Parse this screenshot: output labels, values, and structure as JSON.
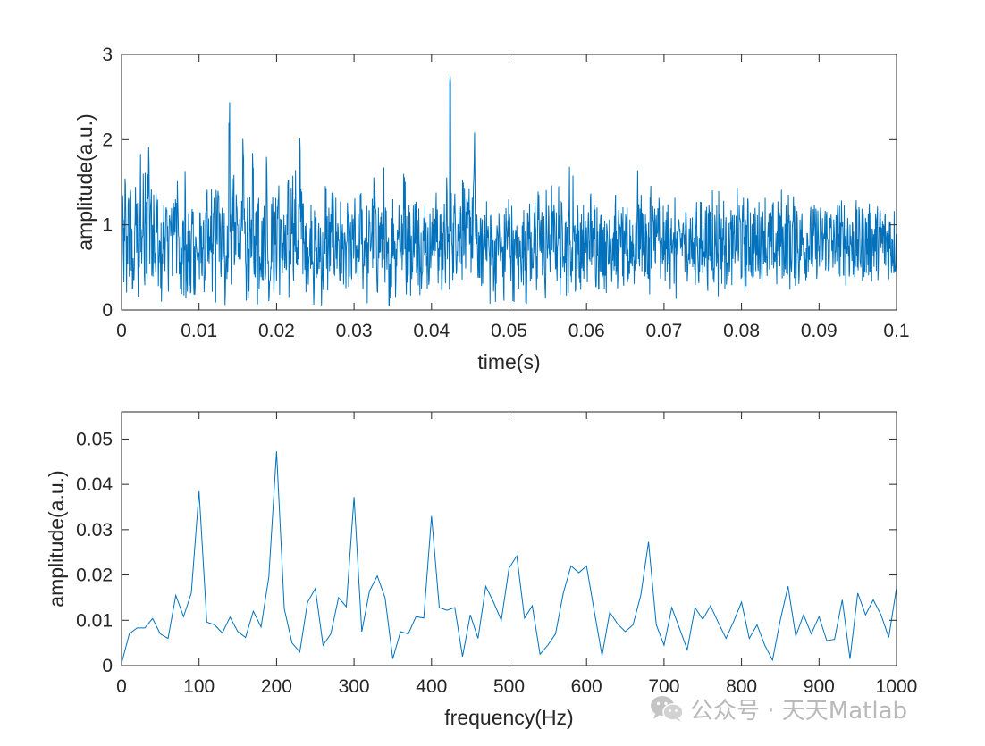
{
  "chart_data": [
    {
      "type": "line",
      "title": "",
      "xlabel": "time(s)",
      "ylabel": "amplitude(a.u.)",
      "xlim": [
        0,
        0.1
      ],
      "ylim": [
        0,
        3
      ],
      "xticks": [
        0,
        0.01,
        0.02,
        0.03,
        0.04,
        0.05,
        0.06,
        0.07,
        0.08,
        0.09,
        0.1
      ],
      "xtick_labels": [
        "0",
        "0.01",
        "0.02",
        "0.03",
        "0.04",
        "0.05",
        "0.06",
        "0.07",
        "0.08",
        "0.09",
        "0.1"
      ],
      "yticks": [
        0,
        1,
        2,
        3
      ],
      "ytick_labels": [
        "0",
        "1",
        "2",
        "3"
      ],
      "grid": false,
      "color": "#0072BD",
      "note": "dense noisy signal sampled at 20 kHz; values approximated",
      "sample_rate": 20000,
      "values": [
        0.55,
        0.9,
        0.62,
        1.25,
        0.48,
        0.8,
        0.98,
        0.74,
        1.53,
        0.58,
        0.32,
        0.66,
        1.05,
        1.02,
        0.92,
        0.22,
        0.85,
        1.66,
        0.77,
        0.95,
        1.2,
        0.62,
        1.46,
        0.62,
        1.32,
        1.6,
        0.97,
        1.27,
        0.59,
        0.66,
        0.99,
        0.53,
        1.1,
        0.85,
        0.56,
        0.49,
        0.63,
        0.39,
        0.71,
        0.95,
        0.9,
        0.91,
        0.72,
        0.66,
        0.98,
        0.88,
        0.82,
        0.73,
        1.1,
        1.04,
        1.41,
        0.77,
        1.09,
        0.58,
        0.58,
        0.52,
        0.63,
        1.38,
        0.51,
        1.45,
        0.39,
        0.58,
        0.7,
        0.51,
        0.21,
        0.98,
        0.98,
        0.51,
        0.6,
        0.87,
        0.52,
        0.73,
        0.53,
        0.75,
        0.64,
        0.81,
        0.63,
        0.46,
        0.79,
        0.97,
        0.6,
        0.72,
        0.61,
        1.05,
        0.64,
        0.85,
        0.91,
        0.36,
        1.04,
        0.93,
        1.15,
        0.84,
        0.7,
        1.34,
        0.61,
        1.03,
        0.21,
        0.52,
        0.71,
        0.5,
        2.36,
        0.87,
        0.71,
        1.27,
        1.2,
        0.61,
        0.67,
        1.19,
        0.81,
        1.0,
        0.75,
        1.35,
        0.85,
        1.58,
        0.76,
        0.89,
        0.24,
        0.95,
        0.56,
        0.88,
        1.01,
        0.68,
        1.41,
        0.67,
        0.81,
        0.84,
        0.36,
        1.17,
        0.62,
        0.84,
        0.74,
        0.71,
        0.75,
        1.06,
        0.69,
        1.51,
        0.78,
        0.33,
        0.42,
        0.89,
        0.94,
        0.81,
        0.61,
        0.9,
        0.71,
        1.08,
        1.33,
        0.6,
        0.73,
        0.73,
        0.75,
        0.84,
        0.58,
        0.57,
        0.83,
        1.1,
        0.49,
        0.86,
        1.13,
        1.28,
        0.79,
        0.94,
        1.23,
        0.8,
        0.62,
        1.03,
        1.64,
        1.2,
        1.3,
        0.84,
        0.51,
        0.77,
        0.62,
        0.83,
        0.65,
        0.57,
        0.93,
        0.96,
        0.7,
        0.39,
        0.74,
        0.76,
        0.48,
        0.66,
        0.65,
        0.85,
        0.48,
        0.6,
        0.52,
        0.54,
        1.15,
        0.84,
        0.56,
        0.85,
        0.71,
        0.76,
        1.16,
        0.91,
        0.72,
        0.96,
        0.73,
        0.9,
        0.88,
        0.56,
        0.88,
        0.77,
        0.71,
        0.74,
        0.47,
        0.55,
        0.82,
        0.71,
        0.73,
        0.69,
        0.55,
        0.7,
        0.87,
        0.9,
        0.52,
        0.4,
        0.69,
        0.6,
        1.19,
        0.99,
        0.93,
        0.45,
        0.88,
        0.83,
        0.84,
        0.48,
        0.78,
        0.78,
        0.85,
        1.0,
        0.84,
        1.21,
        1.15,
        0.76,
        0.59,
        0.94,
        0.79,
        0.88,
        0.75,
        0.88,
        1.25,
        0.4,
        0.83,
        0.45,
        0.5,
        0.5,
        0.55,
        0.62,
        0.81,
        0.99,
        0.9,
        0.58,
        0.73,
        0.78,
        1.15,
        0.77,
        0.88,
        0.77,
        0.62,
        1.54,
        1.13,
        0.58,
        0.76,
        0.8,
        0.98,
        0.52,
        0.79,
        0.44,
        1.02,
        0.94,
        1.07,
        0.29,
        0.71,
        1.16,
        0.53,
        0.7,
        0.83,
        0.87,
        0.65,
        1.06,
        0.81,
        0.6,
        0.68,
        0.78,
        0.76,
        0.73,
        0.79,
        0.96,
        1.1,
        1.02,
        0.75,
        0.5,
        0.73,
        0.98,
        0.51,
        0.94,
        0.65,
        0.87,
        0.63,
        1.25,
        0.84,
        0.67,
        2.6,
        0.99,
        0.94,
        0.77,
        0.99,
        1.03,
        0.77,
        0.98,
        0.95,
        0.76,
        1.5,
        0.74,
        1.18,
        1.08,
        0.92,
        0.71,
        0.88,
        0.9,
        1.17,
        0.99,
        0.81,
        0.92,
        1.34,
        1.73,
        0.95,
        0.7,
        0.66,
        0.79,
        0.64,
        0.67,
        0.67,
        0.62,
        0.82,
        1.11,
        0.85,
        0.83,
        0.77,
        0.47,
        0.96,
        0.6,
        0.67,
        0.62,
        0.52,
        0.75,
        0.62,
        0.88,
        0.82,
        0.66,
        0.63,
        0.77,
        0.37,
        0.72,
        0.94,
        0.86,
        0.76,
        1.04,
        0.83,
        0.69,
        0.86,
        0.55,
        0.52,
        0.57,
        0.95,
        0.44,
        0.54,
        0.66,
        0.82,
        0.69,
        0.71,
        0.79,
        0.91,
        0.46,
        0.73,
        0.89,
        1.21,
        0.53,
        0.75,
        0.74,
        0.75,
        0.86,
        0.59,
        0.42,
        1.05,
        1.1,
        1.03,
        0.86,
        0.81,
        0.51,
        0.77,
        0.32,
        0.99,
        0.78,
        0.81,
        0.74,
        0.94,
        1.08,
        0.79,
        0.87,
        0.84,
        0.73,
        0.72,
        1.09,
        0.82,
        0.6,
        0.85,
        0.87,
        1.01,
        0.78,
        0.89,
        0.6,
        0.64,
        1.28,
        0.59,
        0.73,
        0.65,
        1.2,
        0.83,
        0.57,
        0.83,
        0.86,
        0.82,
        0.55,
        0.68,
        0.7,
        0.85,
        0.59,
        0.65,
        0.96,
        0.5,
        0.92,
        0.85,
        0.99,
        0.75,
        0.92,
        0.56,
        0.93,
        0.68,
        0.95,
        0.88,
        0.67,
        0.71,
        0.86,
        0.82,
        0.84,
        0.65,
        0.82,
        0.62,
        0.73,
        0.61,
        1.0,
        0.87,
        0.59,
        0.86,
        0.79,
        0.92,
        0.64,
        0.58,
        0.79,
        0.65,
        1.04,
        0.75,
        0.77,
        0.49,
        0.45,
        0.9,
        0.8,
        0.67,
        0.61,
        0.91,
        0.7,
        0.88,
        0.71,
        0.66,
        0.61,
        0.85,
        1.2,
        0.94,
        0.79,
        1.0,
        0.85,
        1.03,
        0.86,
        0.67,
        0.74,
        0.54,
        0.82,
        0.6,
        1.14,
        0.58,
        0.87,
        0.81,
        1.01,
        0.88,
        0.75,
        1.19,
        0.95,
        0.55,
        0.56,
        0.77,
        0.86,
        0.59,
        0.77,
        0.83,
        0.84,
        0.67,
        0.68,
        1.13,
        0.89,
        0.53,
        0.66,
        0.88,
        0.52,
        0.79,
        0.62,
        0.75,
        0.8,
        0.79,
        0.85,
        0.96,
        0.56,
        0.88,
        0.78,
        0.86,
        0.78,
        0.86,
        0.85,
        0.71,
        0.69,
        0.58,
        0.74,
        1.13,
        0.75,
        0.61,
        0.65,
        0.86,
        0.66,
        0.68,
        0.99,
        0.84,
        0.87,
        0.67,
        0.76,
        0.8,
        0.88,
        0.63,
        1.18,
        0.72,
        0.81,
        0.85,
        0.88,
        0.51,
        1.06,
        0.89,
        0.72,
        0.78,
        0.92,
        0.68,
        0.69,
        0.68,
        0.88,
        0.6,
        0.86,
        0.82,
        0.73,
        0.67,
        0.71,
        0.89,
        0.77,
        0.99,
        0.74,
        0.94,
        0.89,
        0.72,
        0.81,
        0.91,
        0.66,
        0.67,
        0.82,
        0.89,
        0.79,
        0.92,
        0.71,
        0.72,
        0.8,
        0.79,
        0.78,
        0.68,
        0.81,
        0.86,
        0.81,
        0.89,
        0.79,
        0.83,
        0.99,
        0.98,
        0.73,
        0.71,
        0.73,
        0.75,
        0.75,
        0.71,
        0.82,
        0.85,
        0.68,
        0.72,
        0.64,
        0.85,
        0.95,
        0.71,
        1.01,
        0.79,
        0.72,
        0.81,
        0.89,
        0.76,
        0.85,
        0.96,
        0.65,
        0.63,
        0.8,
        0.99,
        0.78,
        0.71,
        0.79,
        0.97,
        0.69,
        0.71,
        0.82,
        0.83,
        0.8,
        0.87,
        0.67,
        0.73,
        0.82,
        0.88,
        0.78,
        0.77,
        0.81,
        0.77,
        0.79,
        0.8,
        0.81,
        0.8,
        0.85,
        0.73,
        0.71,
        0.83,
        0.76,
        0.79,
        0.83,
        0.87,
        0.88,
        0.81,
        0.75,
        0.78,
        0.84,
        0.73,
        0.74,
        0.7,
        0.89,
        0.76,
        0.78,
        0.85,
        0.89,
        0.77,
        0.86,
        0.75,
        0.83,
        0.89,
        0.72,
        0.77,
        0.91,
        0.75,
        0.79,
        0.86,
        0.73,
        0.79,
        0.74,
        0.82,
        0.85,
        0.75,
        0.76,
        0.81,
        0.76,
        0.79,
        0.77,
        0.8,
        0.84,
        0.77,
        0.8,
        0.78,
        0.81,
        0.82,
        0.76,
        0.8,
        0.79,
        0.81,
        0.78,
        0.8,
        0.8,
        0.79,
        0.81,
        0.8,
        0.79,
        0.8,
        0.8,
        0.8,
        0.8,
        0.8,
        0.8,
        0.8,
        0.8,
        0.8,
        0.8,
        0.8,
        0.8,
        0.8,
        0.8
      ]
    },
    {
      "type": "line",
      "title": "",
      "xlabel": "frequency(Hz)",
      "ylabel": "amplitude(a.u.)",
      "xlim": [
        0,
        1000
      ],
      "ylim": [
        0,
        0.056
      ],
      "xticks": [
        0,
        100,
        200,
        300,
        400,
        500,
        600,
        700,
        800,
        900,
        1000
      ],
      "xtick_labels": [
        "0",
        "100",
        "200",
        "300",
        "400",
        "500",
        "600",
        "700",
        "800",
        "900",
        "1000"
      ],
      "yticks": [
        0,
        0.01,
        0.02,
        0.03,
        0.04,
        0.05
      ],
      "ytick_labels": [
        "0",
        "0.01",
        "0.02",
        "0.03",
        "0.04",
        "0.05"
      ],
      "grid": false,
      "color": "#0072BD",
      "x": [
        0,
        10,
        20,
        30,
        40,
        50,
        60,
        70,
        80,
        90,
        100,
        110,
        120,
        130,
        140,
        150,
        160,
        170,
        180,
        190,
        200,
        210,
        220,
        230,
        240,
        250,
        260,
        270,
        280,
        290,
        300,
        310,
        320,
        330,
        340,
        350,
        360,
        370,
        380,
        390,
        400,
        410,
        420,
        430,
        440,
        450,
        460,
        470,
        480,
        490,
        500,
        510,
        520,
        530,
        540,
        550,
        560,
        570,
        580,
        590,
        600,
        610,
        620,
        630,
        640,
        650,
        660,
        670,
        680,
        690,
        700,
        710,
        720,
        730,
        740,
        750,
        760,
        770,
        780,
        790,
        800,
        810,
        820,
        830,
        840,
        850,
        860,
        870,
        880,
        890,
        900,
        910,
        920,
        930,
        940,
        950,
        960,
        970,
        980,
        990,
        1000
      ],
      "y": [
        0.0005,
        0.007,
        0.0083,
        0.0083,
        0.0104,
        0.007,
        0.006,
        0.0155,
        0.0108,
        0.016,
        0.0385,
        0.0096,
        0.009,
        0.0072,
        0.0107,
        0.0075,
        0.0062,
        0.012,
        0.0085,
        0.0195,
        0.0473,
        0.0125,
        0.005,
        0.003,
        0.014,
        0.017,
        0.0045,
        0.007,
        0.015,
        0.013,
        0.0372,
        0.0075,
        0.0165,
        0.0198,
        0.015,
        0.0015,
        0.0075,
        0.007,
        0.0108,
        0.0105,
        0.033,
        0.0128,
        0.0122,
        0.0128,
        0.002,
        0.0112,
        0.006,
        0.0175,
        0.014,
        0.01,
        0.0215,
        0.0242,
        0.0105,
        0.0132,
        0.0025,
        0.0045,
        0.007,
        0.016,
        0.022,
        0.0205,
        0.022,
        0.012,
        0.0022,
        0.0118,
        0.0092,
        0.0075,
        0.009,
        0.0155,
        0.0273,
        0.009,
        0.0045,
        0.0128,
        0.0082,
        0.0035,
        0.0128,
        0.0102,
        0.0132,
        0.0095,
        0.006,
        0.0098,
        0.014,
        0.006,
        0.009,
        0.0045,
        0.0012,
        0.01,
        0.0175,
        0.0065,
        0.0112,
        0.007,
        0.0108,
        0.0055,
        0.0058,
        0.0145,
        0.0015,
        0.016,
        0.0112,
        0.0145,
        0.0112,
        0.0062,
        0.0172
      ]
    }
  ],
  "watermark": {
    "icon": "wechat-icon",
    "text": "公众号 · 天天Matlab"
  }
}
